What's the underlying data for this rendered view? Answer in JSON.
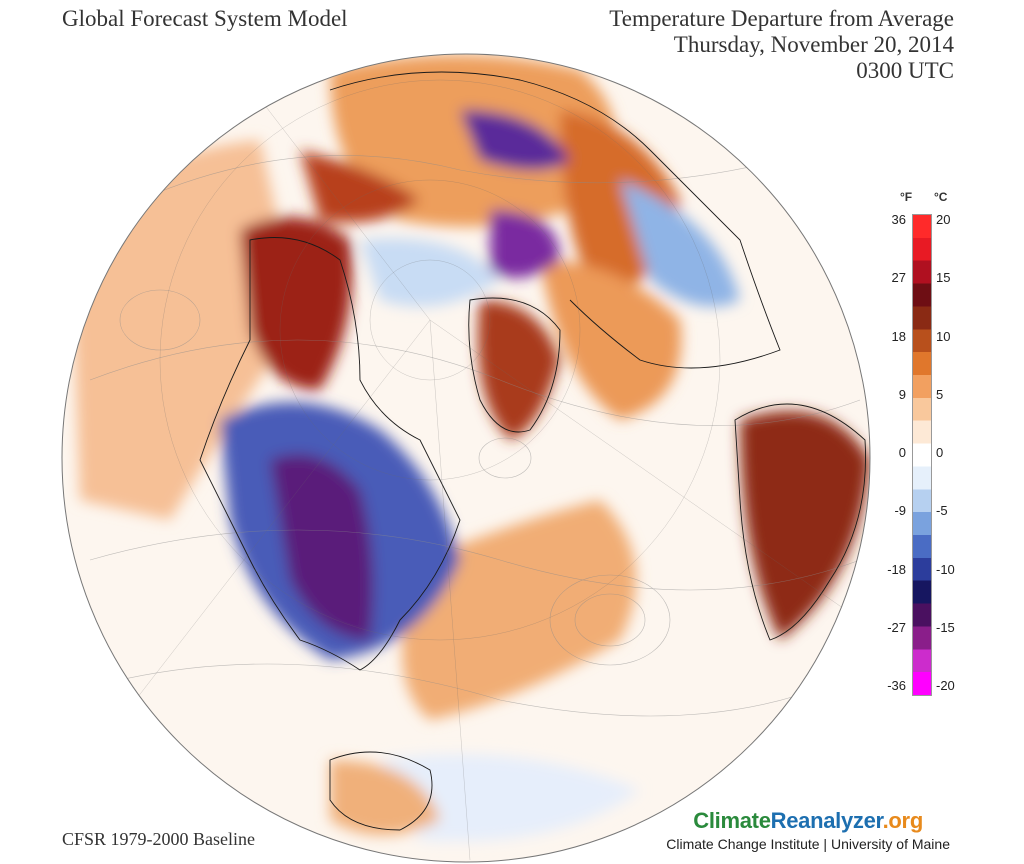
{
  "header": {
    "model_title": "Global Forecast System Model",
    "map_title": "Temperature Departure from Average",
    "date": "Thursday, November 20, 2014",
    "time": "0300 UTC"
  },
  "footer": {
    "baseline": "CFSR 1979-2000 Baseline",
    "site_part1": "Climate",
    "site_part2": "Reanalyzer",
    "site_part3": ".org",
    "institution": "Climate Change Institute | University of Maine"
  },
  "legend": {
    "unit_f": "°F",
    "unit_c": "°C",
    "f_ticks": [
      "36",
      "27",
      "18",
      "9",
      "0",
      "-9",
      "-18",
      "-27",
      "-36"
    ],
    "c_ticks": [
      "20",
      "15",
      "10",
      "5",
      "0",
      "-5",
      "-10",
      "-15",
      "-20"
    ],
    "colors": [
      "#f0f",
      "#cc2ccc",
      "#8a1e8a",
      "#4a1060",
      "#161660",
      "#2c3d9c",
      "#4a6cc4",
      "#7aa2de",
      "#b6d0f0",
      "#e6f0fb",
      "#ffffff",
      "#fde9d6",
      "#f9c89c",
      "#f2a060",
      "#e0772c",
      "#b8501c",
      "#8a2a14",
      "#6e0e14",
      "#b01020",
      "#e81a24",
      "#ff2a2a"
    ]
  },
  "map": {
    "projection": "orthographic-north-polar",
    "ocean_color": "#ffffff",
    "warm_colors": [
      "#f4a868",
      "#e07a34",
      "#b24a1c",
      "#8a1c1c"
    ],
    "cold_colors": [
      "#b6d0f0",
      "#5a82cc",
      "#2c2c8c",
      "#8a1e8a",
      "#c02ac0"
    ]
  }
}
